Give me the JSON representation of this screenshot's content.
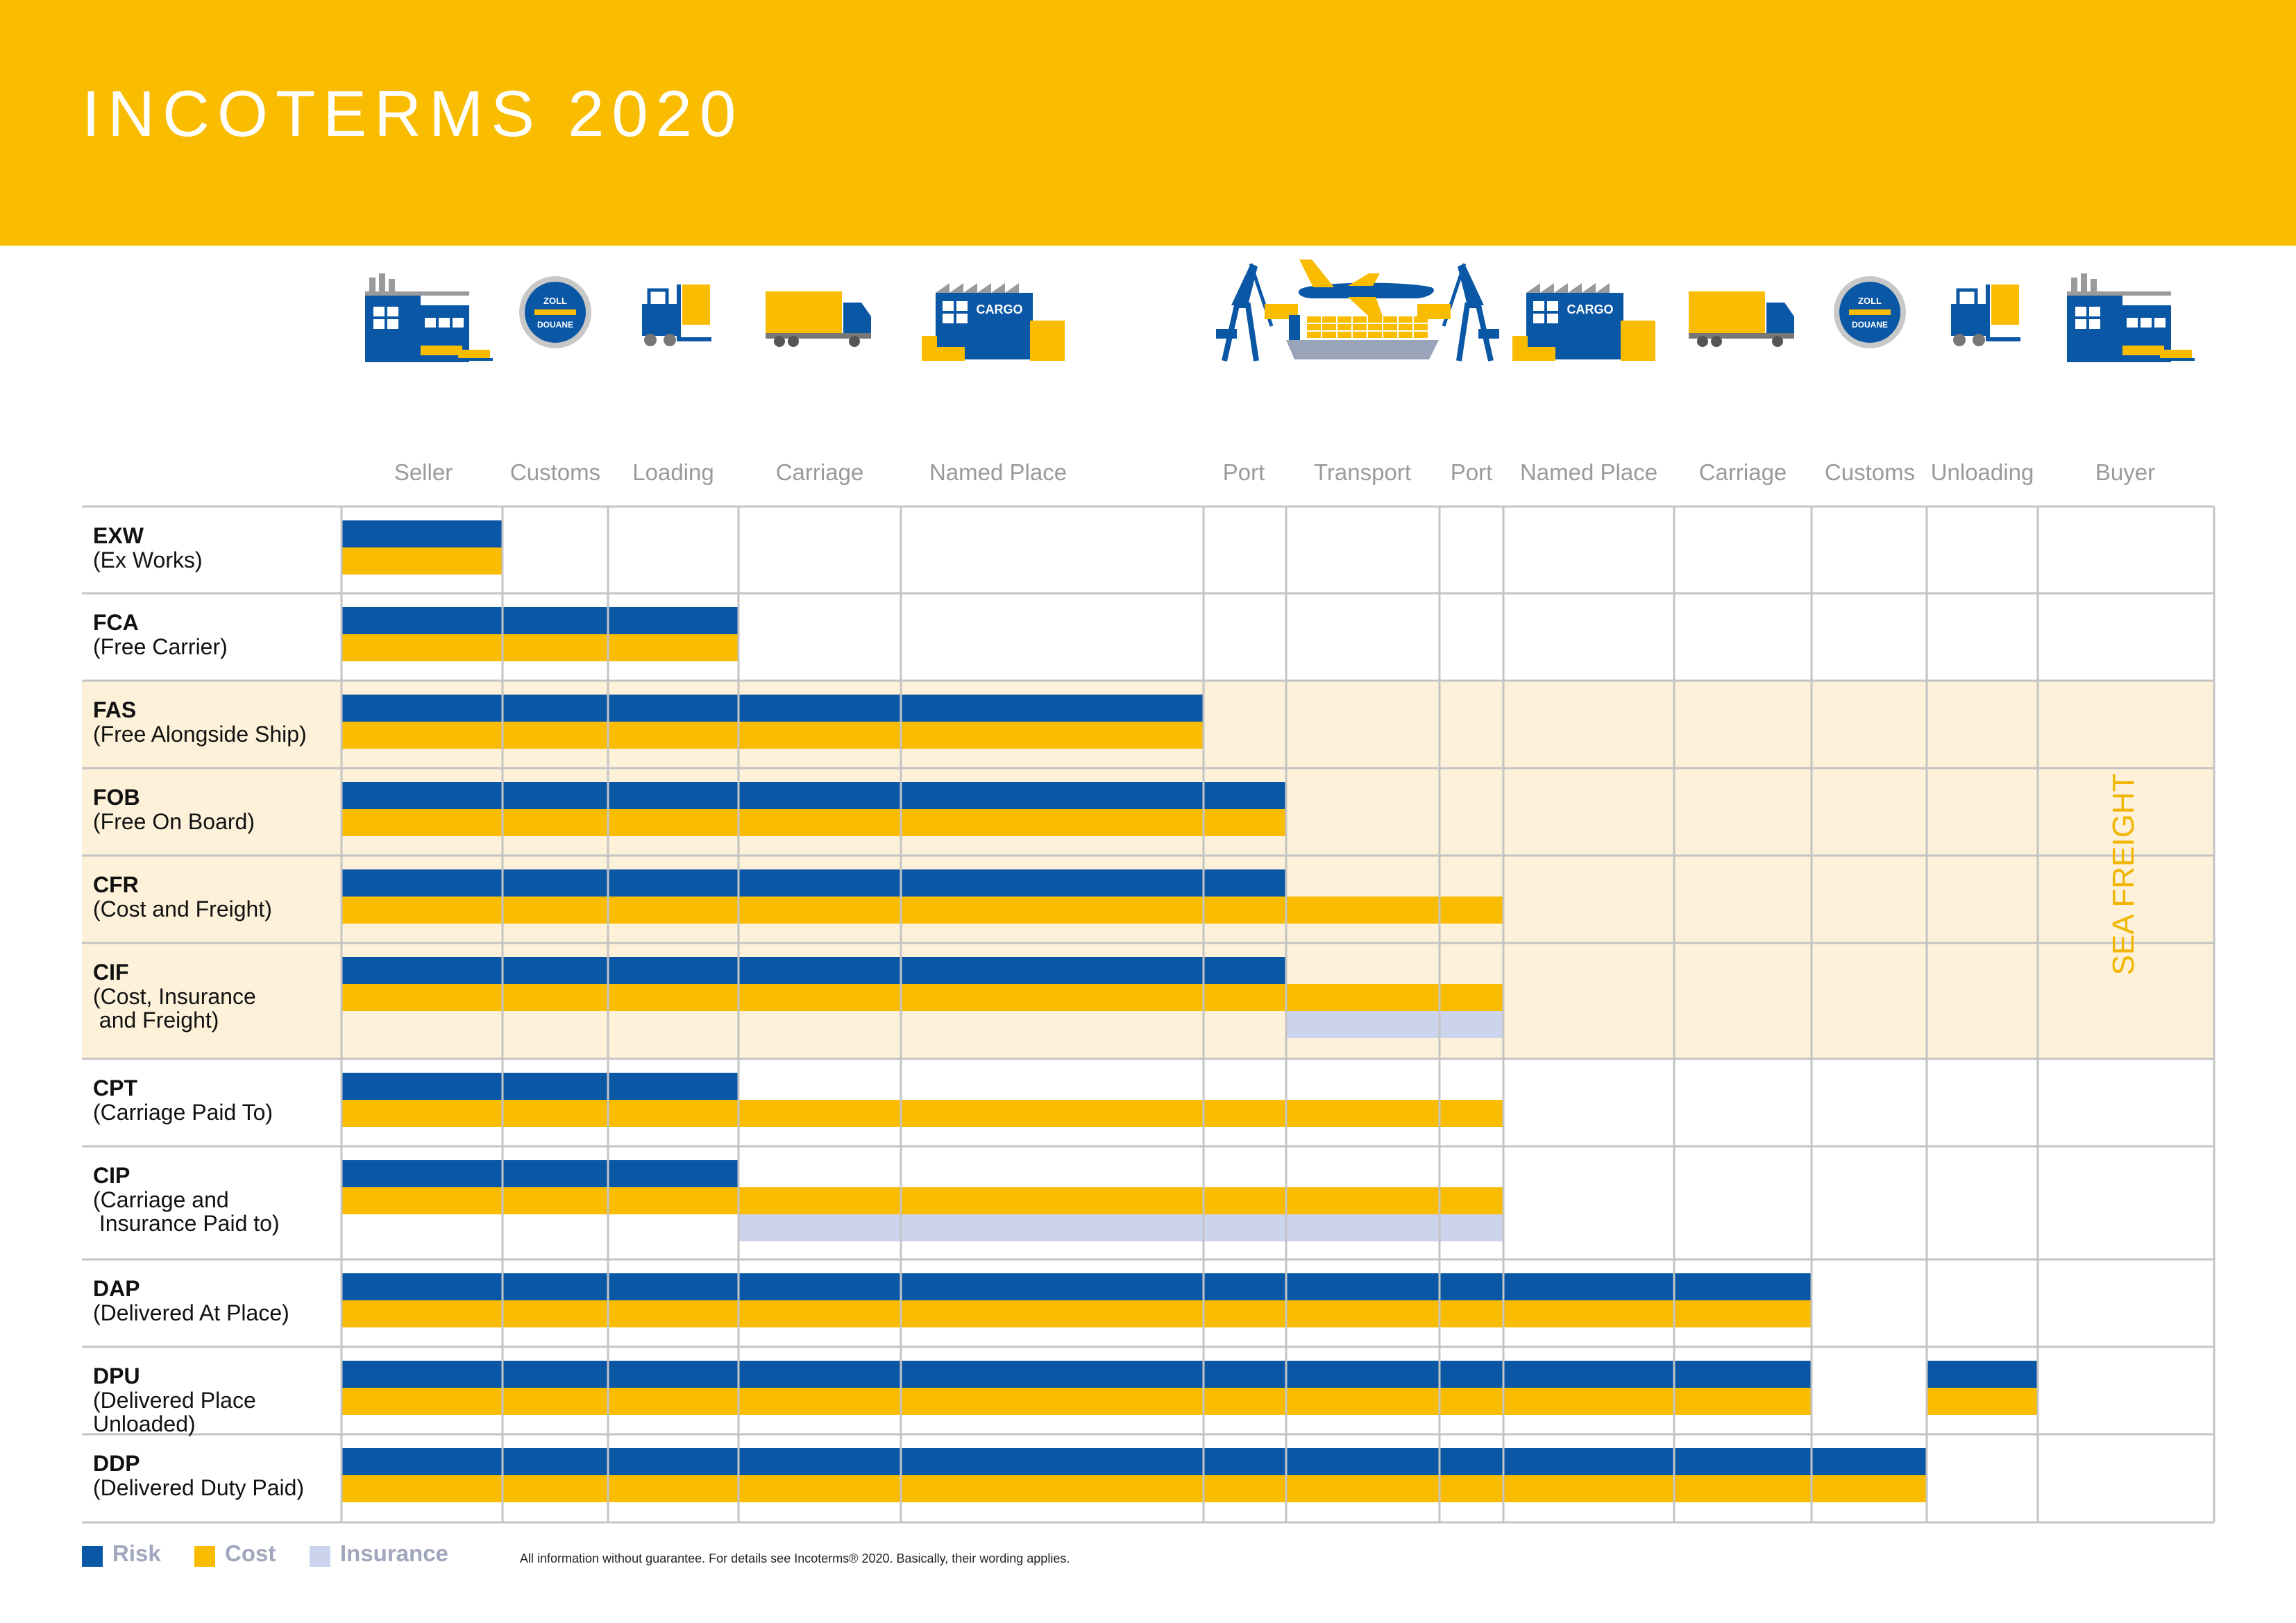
{
  "title": "INCOTERMS 2020",
  "colors": {
    "header": "#f9bc00",
    "risk": "#0a57a6",
    "cost": "#f9bc00",
    "insurance": "#ccd3ec",
    "sea_freight_bg": "#fdf1d9",
    "grid": "#c4c4c4",
    "icon_blue": "#0a57a6",
    "icon_yellow": "#f9bc00"
  },
  "stages": [
    {
      "label": "Seller",
      "icon": "factory-icon"
    },
    {
      "label": "Customs",
      "icon": "customs-zoll-douane-icon",
      "badge_top": "ZOLL",
      "badge_bottom": "DOUANE"
    },
    {
      "label": "Loading",
      "icon": "forklift-icon"
    },
    {
      "label": "Carriage",
      "icon": "truck-icon"
    },
    {
      "label": "Named Place",
      "icon": "cargo-warehouse-icon",
      "badge": "CARGO"
    },
    {
      "label": "Port",
      "icon": "port-crane-icon"
    },
    {
      "label": "Transport",
      "icon": "container-ship-icon"
    },
    {
      "label": "Port",
      "icon": "port-crane-icon"
    },
    {
      "label": "Named Place",
      "icon": "cargo-warehouse-icon",
      "badge": "CARGO"
    },
    {
      "label": "Carriage",
      "icon": "truck-icon"
    },
    {
      "label": "Customs",
      "icon": "customs-zoll-douane-icon",
      "badge_top": "ZOLL",
      "badge_bottom": "DOUANE"
    },
    {
      "label": "Unloading",
      "icon": "forklift-icon"
    },
    {
      "label": "Buyer",
      "icon": "factory-icon"
    }
  ],
  "extra_icons": [
    "airplane-icon"
  ],
  "sea_freight_label": "SEA FREIGHT",
  "terms": [
    {
      "code": "EXW",
      "desc": "(Ex Works)",
      "risk_until": 1,
      "cost_until": 1
    },
    {
      "code": "FCA",
      "desc": "(Free Carrier)",
      "risk_until": 3,
      "cost_until": 3
    },
    {
      "code": "FAS",
      "desc": "(Free Alongside Ship)",
      "risk_until": 5,
      "cost_until": 5,
      "sea": true
    },
    {
      "code": "FOB",
      "desc": "(Free On Board)",
      "risk_until": 6,
      "cost_until": 6,
      "sea": true
    },
    {
      "code": "CFR",
      "desc": "(Cost and Freight)",
      "risk_until": 6,
      "cost_until": 8,
      "sea": true
    },
    {
      "code": "CIF",
      "desc": "(Cost, Insurance\n and Freight)",
      "risk_until": 6,
      "cost_until": 8,
      "insurance_from": 6,
      "insurance_until": 8,
      "sea": true
    },
    {
      "code": "CPT",
      "desc": "(Carriage Paid To)",
      "risk_until": 3,
      "cost_until": 8
    },
    {
      "code": "CIP",
      "desc": "(Carriage and\n Insurance Paid to)",
      "risk_until": 3,
      "cost_until": 8,
      "insurance_from": 3,
      "insurance_until": 8
    },
    {
      "code": "DAP",
      "desc": "(Delivered At Place)",
      "risk_until": 10,
      "cost_until": 10
    },
    {
      "code": "DPU",
      "desc": "(Delivered Place\nUnloaded)",
      "risk_until": 10,
      "cost_until": 10,
      "extra_from": 11,
      "extra_until": 12
    },
    {
      "code": "DDP",
      "desc": "(Delivered Duty Paid)",
      "risk_until": 11,
      "cost_until": 11
    }
  ],
  "legend": [
    {
      "label": "Risk",
      "color": "#0a57a6"
    },
    {
      "label": "Cost",
      "color": "#f9bc00"
    },
    {
      "label": "Insurance",
      "color": "#ccd3ec"
    }
  ],
  "disclaimer": "All information without guarantee. For details see Incoterms® 2020. Basically, their wording applies."
}
